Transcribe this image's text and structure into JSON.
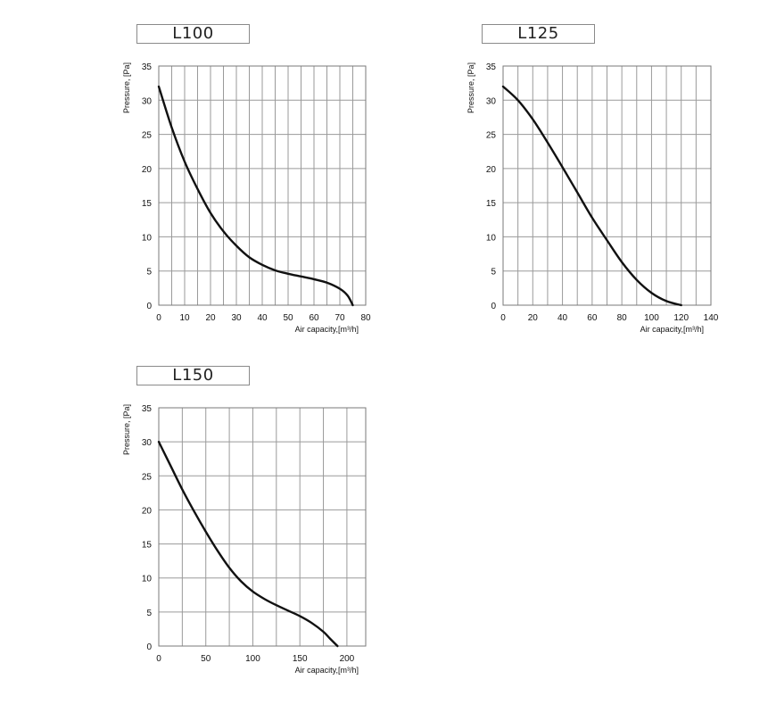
{
  "chart_data": [
    {
      "type": "line",
      "title": "L100",
      "xlabel": "Air capacity,[m³/h]",
      "ylabel": "Pressure, [Pa]",
      "xlim": [
        0,
        80
      ],
      "ylim": [
        0,
        35
      ],
      "x_ticks": [
        0,
        10,
        20,
        30,
        40,
        50,
        60,
        70,
        80
      ],
      "y_ticks": [
        0,
        5,
        10,
        15,
        20,
        25,
        30,
        35
      ],
      "x_grid_step": 5,
      "y_grid_step": 5,
      "grid": true,
      "series": [
        {
          "x": [
            0,
            5,
            10,
            15,
            20,
            25,
            30,
            35,
            40,
            45,
            50,
            55,
            60,
            65,
            70,
            73,
            75
          ],
          "y": [
            32,
            26,
            21,
            17,
            13.5,
            10.8,
            8.7,
            7,
            5.9,
            5.1,
            4.6,
            4.2,
            3.8,
            3.3,
            2.4,
            1.4,
            0
          ]
        }
      ]
    },
    {
      "type": "line",
      "title": "L125",
      "xlabel": "Air capacity,[m³/h]",
      "ylabel": "Pressure, [Pa]",
      "xlim": [
        0,
        140
      ],
      "ylim": [
        0,
        35
      ],
      "x_ticks": [
        0,
        20,
        40,
        60,
        80,
        100,
        120,
        140
      ],
      "y_ticks": [
        0,
        5,
        10,
        15,
        20,
        25,
        30,
        35
      ],
      "x_grid_step": 10,
      "y_grid_step": 5,
      "grid": true,
      "series": [
        {
          "x": [
            0,
            10,
            20,
            30,
            40,
            50,
            60,
            70,
            80,
            90,
            100,
            110,
            120
          ],
          "y": [
            32,
            30,
            27.2,
            23.8,
            20.2,
            16.5,
            12.8,
            9.5,
            6.3,
            3.7,
            1.8,
            0.6,
            0
          ]
        }
      ]
    },
    {
      "type": "line",
      "title": "L150",
      "xlabel": "Air capacity,[m³/h]",
      "ylabel": "Pressure, [Pa]",
      "xlim": [
        0,
        220
      ],
      "ylim": [
        0,
        35
      ],
      "x_ticks": [
        0,
        50,
        100,
        150,
        200
      ],
      "y_ticks": [
        0,
        5,
        10,
        15,
        20,
        25,
        30,
        35
      ],
      "x_grid_step": 25,
      "y_grid_step": 5,
      "grid": true,
      "series": [
        {
          "x": [
            0,
            12.5,
            25,
            37.5,
            50,
            62.5,
            75,
            87.5,
            100,
            112.5,
            125,
            137.5,
            150,
            162.5,
            175,
            182,
            190
          ],
          "y": [
            30,
            26.5,
            23,
            19.8,
            16.8,
            14,
            11.5,
            9.5,
            8,
            6.9,
            6,
            5.2,
            4.4,
            3.4,
            2.1,
            1.1,
            0
          ]
        }
      ]
    }
  ]
}
